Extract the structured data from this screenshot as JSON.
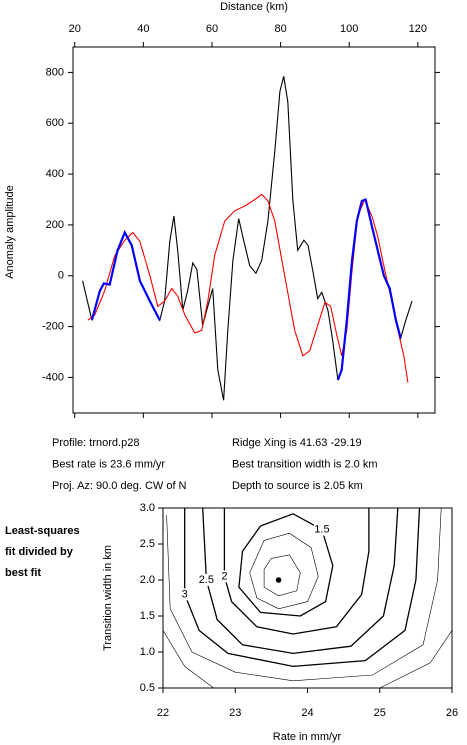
{
  "chart_data": [
    {
      "type": "line",
      "xlabel": "Distance (km)",
      "ylabel": "Anomaly amplitude",
      "xlim": [
        19.5,
        125
      ],
      "xticks": [
        20,
        40,
        60,
        80,
        100,
        120
      ],
      "ylim": [
        -540,
        900
      ],
      "yticks": [
        -400,
        -200,
        0,
        200,
        400,
        600,
        800
      ],
      "series": [
        {
          "color": "#000000",
          "x": [
            22.3,
            25,
            27.3,
            28.5,
            30.2,
            32.5,
            34.6,
            36.6,
            39,
            41.9,
            44.8,
            46.2,
            47.7,
            48.9,
            50,
            51.5,
            52.9,
            54.4,
            55.6,
            57.3,
            58.8,
            60.2,
            61.7,
            63.4,
            64.6,
            66.1,
            67.8,
            69.3,
            71,
            72.8,
            74.5,
            76.3,
            78.3,
            79.8,
            80.9,
            82.1,
            83.6,
            85,
            86.8,
            88,
            89.4,
            90.8,
            92,
            93.8,
            95.2,
            96.7,
            97.8,
            99.3,
            100.8,
            102.2,
            103.7,
            104.8,
            106.6,
            108.3,
            110.1,
            111.8,
            113.6,
            115,
            116.5,
            118.3
          ],
          "values": [
            -20,
            -175,
            -60,
            -30,
            -35,
            100,
            170,
            120,
            -20,
            -100,
            -175,
            -100,
            135,
            235,
            100,
            -135,
            -60,
            50,
            25,
            -195,
            -120,
            -50,
            -370,
            -490,
            -215,
            60,
            225,
            135,
            40,
            10,
            60,
            215,
            490,
            725,
            785,
            685,
            295,
            100,
            140,
            120,
            20,
            -90,
            -65,
            -135,
            -255,
            -410,
            -370,
            -175,
            60,
            215,
            295,
            300,
            195,
            100,
            0,
            -50,
            -175,
            -245,
            -175,
            -100
          ]
        },
        {
          "color": "#ff0000",
          "x": [
            23.8,
            25.8,
            28.7,
            31.7,
            34.6,
            36.9,
            39,
            41.9,
            44.2,
            46.2,
            48.3,
            50,
            52.1,
            55,
            57,
            58.8,
            60.8,
            63.7,
            66.6,
            69.6,
            72.5,
            74.5,
            76.3,
            78.3,
            81.2,
            84.1,
            86.5,
            88.5,
            90.8,
            92.9,
            94.6,
            96.4,
            97.8,
            99.3,
            100.8,
            102.5,
            104.5,
            106.6,
            108.3,
            110.4,
            112.4,
            114.2,
            115.9,
            117.1
          ],
          "values": [
            -175,
            -155,
            -60,
            80,
            140,
            170,
            135,
            0,
            -120,
            -100,
            -50,
            -80,
            -155,
            -225,
            -215,
            -100,
            80,
            215,
            255,
            275,
            300,
            320,
            295,
            215,
            0,
            -215,
            -315,
            -295,
            -195,
            -105,
            -120,
            -235,
            -315,
            -215,
            20,
            235,
            300,
            235,
            155,
            20,
            -100,
            -215,
            -315,
            -420
          ]
        },
        {
          "color": "#0000ff",
          "x": [
            25,
            27.3,
            28.5,
            30.2,
            32.5,
            34.6,
            36.6,
            39,
            41.9,
            44.8,
            null,
            96.7,
            97.8,
            99.3,
            100.8,
            102.2,
            103.7,
            104.8,
            106.6,
            108.3,
            110.1,
            111.8,
            113.6,
            115
          ],
          "values": [
            -175,
            -60,
            -30,
            -35,
            100,
            170,
            120,
            -20,
            -100,
            -175,
            null,
            -410,
            -370,
            -175,
            60,
            215,
            295,
            300,
            195,
            100,
            0,
            -50,
            -175,
            -245
          ]
        }
      ],
      "annotations": [
        "Profile: trnord.p28",
        "Best rate is 23.6 mm/yr",
        "Proj. Az: 90.0 deg. CW of N",
        "Ridge Xing is 41.63 -29.19",
        "Best transition width is 2.0 km",
        "Depth to source is   2.05 km"
      ]
    },
    {
      "type": "contour",
      "xlabel": "Rate in mm/yr",
      "ylabel": "Transition width in km",
      "note": [
        "Least-squares",
        "fit divided by",
        "best fit"
      ],
      "xlim": [
        22,
        26
      ],
      "xticks": [
        22,
        23,
        24,
        25,
        26
      ],
      "ylim": [
        0.5,
        3.0
      ],
      "yticks": [
        0.5,
        {
          "value": 1,
          "label": "1.0"
        },
        1.5,
        {
          "value": 2,
          "label": "2.0"
        },
        2.5,
        {
          "value": 3,
          "label": "3.0"
        }
      ],
      "best_fit": {
        "x": 23.6,
        "y": 2.0
      },
      "contours": [
        {
          "level": 1.1,
          "x": [
            23.5,
            23.75,
            23.9,
            23.85,
            23.6,
            23.4,
            23.4,
            23.5
          ],
          "y": [
            2.3,
            2.35,
            2.1,
            1.85,
            1.78,
            1.9,
            2.15,
            2.3
          ]
        },
        {
          "level": 1.25,
          "x": [
            23.4,
            23.75,
            24.05,
            24.15,
            24.0,
            23.6,
            23.3,
            23.2,
            23.4
          ],
          "y": [
            2.55,
            2.65,
            2.45,
            2.05,
            1.7,
            1.6,
            1.75,
            2.1,
            2.55
          ]
        },
        {
          "level": 1.5,
          "labeled": true,
          "x": [
            23.35,
            23.8,
            24.2,
            24.35,
            24.25,
            23.9,
            23.35,
            23.05,
            23.1,
            23.35
          ],
          "y": [
            2.75,
            2.92,
            2.7,
            2.2,
            1.7,
            1.5,
            1.55,
            1.9,
            2.4,
            2.75
          ]
        },
        {
          "level": 2,
          "labeled": true,
          "x": [
            22.85,
            22.85,
            22.95,
            23.3,
            23.8,
            24.4,
            24.75,
            24.85,
            24.85
          ],
          "y": [
            3.0,
            2.05,
            1.7,
            1.35,
            1.25,
            1.35,
            1.8,
            2.4,
            3.0
          ]
        },
        {
          "level": 2.5,
          "labeled": true,
          "x": [
            22.55,
            22.6,
            22.75,
            23.1,
            23.8,
            24.6,
            25.05,
            25.2,
            25.25
          ],
          "y": [
            3.0,
            2.0,
            1.45,
            1.1,
            0.98,
            1.08,
            1.5,
            2.2,
            3.0
          ]
        },
        {
          "level": 3,
          "labeled": true,
          "x": [
            22.3,
            22.3,
            22.5,
            22.9,
            23.8,
            24.8,
            25.35,
            25.5,
            25.55
          ],
          "y": [
            3.0,
            1.8,
            1.3,
            0.98,
            0.8,
            0.88,
            1.3,
            2.0,
            3.0
          ]
        },
        {
          "level": 4,
          "x": [
            22.05,
            22.1,
            22.4,
            23.0,
            23.8,
            24.9,
            25.6,
            25.8,
            25.85
          ],
          "y": [
            2.9,
            1.6,
            1.0,
            0.72,
            0.6,
            0.68,
            1.1,
            2.0,
            3.0
          ]
        },
        {
          "level": 5,
          "x": [
            22.0,
            22.3,
            22.7,
            null,
            25.0,
            25.7,
            26.0
          ],
          "y": [
            1.3,
            0.8,
            0.5,
            null,
            0.5,
            0.85,
            1.3
          ]
        }
      ]
    }
  ]
}
